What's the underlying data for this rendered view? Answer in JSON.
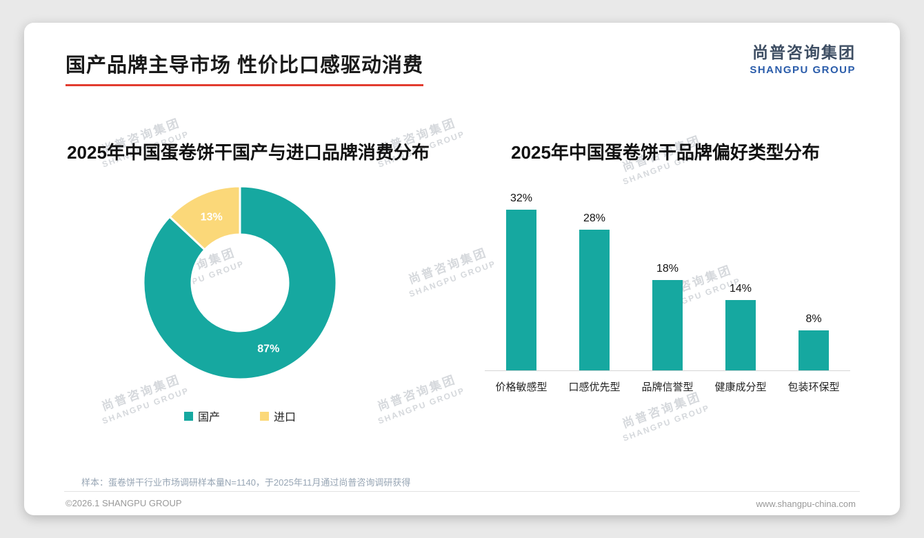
{
  "page": {
    "title": "国产品牌主导市场 性价比口感驱动消费",
    "logo": {
      "cn": "尚普咨询集团",
      "en": "SHANGPU GROUP"
    },
    "watermark": {
      "cn": "尚普咨询集团",
      "en": "SHANGPU GROUP"
    },
    "note": "样本：蛋卷饼干行业市场调研样本量N=1140，于2025年11月通过尚普咨询调研获得",
    "footer": {
      "left": "©2026.1 SHANGPU GROUP",
      "right": "www.shangpu-china.com"
    }
  },
  "colors": {
    "teal": "#16a8a0",
    "yellow": "#fbd879",
    "accent_red": "#e23b2e"
  },
  "chart_data": [
    {
      "type": "pie",
      "donut": true,
      "title": "2025年中国蛋卷饼干国产与进口品牌消费分布",
      "labels": [
        "国产",
        "进口"
      ],
      "values": [
        87,
        13
      ],
      "value_labels": [
        "87%",
        "13%"
      ],
      "colors": [
        "#16a8a0",
        "#fbd879"
      ],
      "legend_position": "bottom",
      "start_angle_deg": 0,
      "direction": "clockwise"
    },
    {
      "type": "bar",
      "title": "2025年中国蛋卷饼干品牌偏好类型分布",
      "categories": [
        "价格敏感型",
        "口感优先型",
        "品牌信誉型",
        "健康成分型",
        "包装环保型"
      ],
      "values": [
        32,
        28,
        18,
        14,
        8
      ],
      "value_labels": [
        "32%",
        "28%",
        "18%",
        "14%",
        "8%"
      ],
      "bar_color": "#16a8a0",
      "xlabel": "",
      "ylabel": "",
      "ylim": [
        0,
        35
      ],
      "grid": false,
      "legend_position": "none"
    }
  ]
}
